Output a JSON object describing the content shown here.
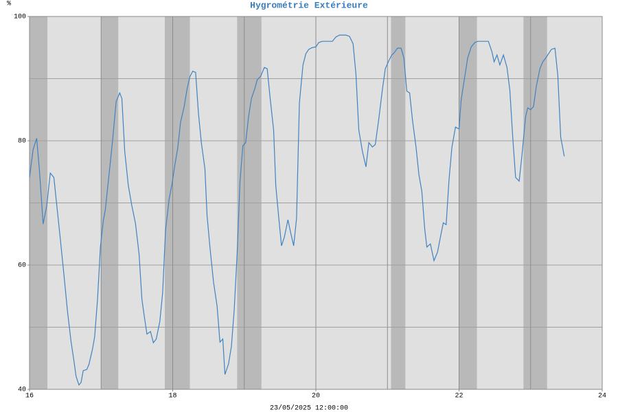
{
  "chart_data": {
    "type": "line",
    "title": "Hygrométrie Extérieure",
    "y_label": "%",
    "x_label": "23/05/2025 12:00:00",
    "xlim": [
      16,
      24
    ],
    "xticks": [
      16,
      18,
      20,
      22,
      24
    ],
    "x_gridlines": [
      17,
      18,
      19,
      20,
      21,
      22,
      23
    ],
    "ylim": [
      40,
      100
    ],
    "yticks": [
      40,
      60,
      80,
      100
    ],
    "y_gridlines": [
      50,
      60,
      70,
      80,
      90
    ],
    "shaded_ranges": [
      [
        16,
        16.25
      ],
      [
        17.0,
        17.24
      ],
      [
        17.89,
        18.24
      ],
      [
        18.9,
        19.24
      ],
      [
        21.05,
        21.25
      ],
      [
        22.0,
        22.25
      ],
      [
        22.9,
        23.23
      ]
    ],
    "series": [
      {
        "color": "#3f82c0",
        "x": [
          16.0,
          16.05,
          16.1,
          16.14,
          16.19,
          16.24,
          16.29,
          16.34,
          16.38,
          16.43,
          16.48,
          16.53,
          16.58,
          16.62,
          16.65,
          16.69,
          16.72,
          16.75,
          16.8,
          16.83,
          16.88,
          16.91,
          16.95,
          16.99,
          17.03,
          17.06,
          17.11,
          17.16,
          17.21,
          17.26,
          17.29,
          17.33,
          17.38,
          17.43,
          17.48,
          17.53,
          17.57,
          17.6,
          17.64,
          17.69,
          17.73,
          17.77,
          17.82,
          17.86,
          17.9,
          17.95,
          17.99,
          18.03,
          18.07,
          18.11,
          18.16,
          18.2,
          18.24,
          18.28,
          18.32,
          18.36,
          18.4,
          18.45,
          18.48,
          18.52,
          18.57,
          18.62,
          18.66,
          18.7,
          18.73,
          18.78,
          18.82,
          18.86,
          18.9,
          18.94,
          18.98,
          19.02,
          19.06,
          19.1,
          19.15,
          19.18,
          19.23,
          19.28,
          19.32,
          19.36,
          19.41,
          19.44,
          19.48,
          19.52,
          19.56,
          19.61,
          19.65,
          19.69,
          19.73,
          19.77,
          19.82,
          19.86,
          19.9,
          19.95,
          20.0,
          20.04,
          20.09,
          20.13,
          20.18,
          20.23,
          20.28,
          20.33,
          20.37,
          20.42,
          20.47,
          20.52,
          20.56,
          20.6,
          20.65,
          20.7,
          20.74,
          20.79,
          20.83,
          20.88,
          20.93,
          20.97,
          21.02,
          21.06,
          21.09,
          21.14,
          21.19,
          21.23,
          21.27,
          21.31,
          21.35,
          21.4,
          21.44,
          21.48,
          21.52,
          21.55,
          21.6,
          21.65,
          21.7,
          21.74,
          21.78,
          21.82,
          21.86,
          21.9,
          21.95,
          22.0,
          22.03,
          22.08,
          22.12,
          22.17,
          22.22,
          22.26,
          22.31,
          22.36,
          22.41,
          22.46,
          22.49,
          22.53,
          22.57,
          22.62,
          22.67,
          22.71,
          22.75,
          22.79,
          22.84,
          22.88,
          22.93,
          22.96,
          23.0,
          23.04,
          23.08,
          23.13,
          23.17,
          23.21,
          23.25,
          23.29,
          23.34,
          23.38,
          23.42,
          23.47
        ],
        "values": [
          74.1,
          78.6,
          80.4,
          75.0,
          66.6,
          69.5,
          74.8,
          74.1,
          69.7,
          64.2,
          58.5,
          52.6,
          47.7,
          44.6,
          42.1,
          40.7,
          41.1,
          43.0,
          43.2,
          44.0,
          46.5,
          48.5,
          54.5,
          62.9,
          67.1,
          69.0,
          74.5,
          80.0,
          86.3,
          87.7,
          86.8,
          78.3,
          72.8,
          69.5,
          66.7,
          61.8,
          54.5,
          52.0,
          48.9,
          49.3,
          47.5,
          48.1,
          50.9,
          55.6,
          65.6,
          70.6,
          73.0,
          76.1,
          78.8,
          83.0,
          85.5,
          88.3,
          90.3,
          91.2,
          91.0,
          84.4,
          79.7,
          75.5,
          68.0,
          62.9,
          57.3,
          53.4,
          47.6,
          48.1,
          42.4,
          44.1,
          46.9,
          52.9,
          61.8,
          73.4,
          79.2,
          79.7,
          83.9,
          86.8,
          88.5,
          89.8,
          90.4,
          91.8,
          91.6,
          87.0,
          81.7,
          72.8,
          67.8,
          63.1,
          64.5,
          67.3,
          65.1,
          63.1,
          67.5,
          86.1,
          92.2,
          94.0,
          94.7,
          95.0,
          95.1,
          95.8,
          96.0,
          96.0,
          96.0,
          96.0,
          96.7,
          97.0,
          97.0,
          97.0,
          96.8,
          95.6,
          90.7,
          81.7,
          78.3,
          75.8,
          79.7,
          79.0,
          79.4,
          83.6,
          88.3,
          91.6,
          92.9,
          93.8,
          94.1,
          94.9,
          94.9,
          93.3,
          88.0,
          87.7,
          83.3,
          78.9,
          74.5,
          71.9,
          65.9,
          62.9,
          63.4,
          60.7,
          62.1,
          64.5,
          66.8,
          66.5,
          73.7,
          78.9,
          82.2,
          81.9,
          86.6,
          90.3,
          93.3,
          95.1,
          95.8,
          96.0,
          96.0,
          96.0,
          96.0,
          94.3,
          92.7,
          93.8,
          92.2,
          93.8,
          91.8,
          88.1,
          80.6,
          74.1,
          73.5,
          77.8,
          83.9,
          85.3,
          85.0,
          85.5,
          88.8,
          91.6,
          92.7,
          93.3,
          94.0,
          94.7,
          94.9,
          90.5,
          80.6,
          77.5
        ]
      }
    ]
  }
}
